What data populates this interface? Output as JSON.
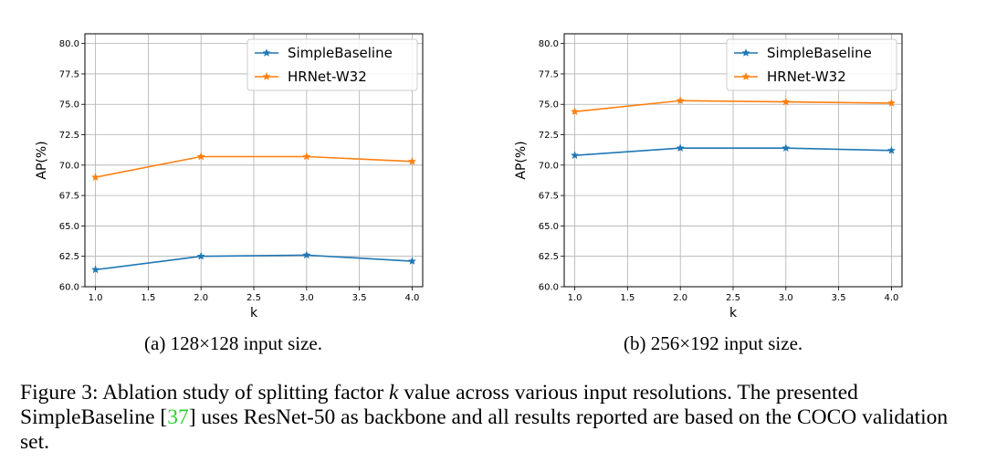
{
  "chart_data": [
    {
      "type": "line",
      "x": [
        1.0,
        2.0,
        3.0,
        4.0
      ],
      "xlim": [
        0.9,
        4.1
      ],
      "ylim": [
        60.0,
        80.8
      ],
      "xticks": [
        "1.0",
        "1.5",
        "2.0",
        "2.5",
        "3.0",
        "3.5",
        "4.0"
      ],
      "yticks": [
        "60.0",
        "62.5",
        "65.0",
        "67.5",
        "70.0",
        "72.5",
        "75.0",
        "77.5",
        "80.0"
      ],
      "xlabel": "k",
      "ylabel": "AP(%)",
      "grid": true,
      "legend_position": "top-right",
      "series": [
        {
          "name": "SimpleBaseline",
          "values": [
            61.4,
            62.5,
            62.6,
            62.1
          ],
          "color": "#1f77b4"
        },
        {
          "name": "HRNet-W32",
          "values": [
            69.0,
            70.7,
            70.7,
            70.3
          ],
          "color": "#ff7f0e"
        }
      ],
      "subcaption": {
        "label": "(a)",
        "text": "128×128 input size."
      }
    },
    {
      "type": "line",
      "x": [
        1.0,
        2.0,
        3.0,
        4.0
      ],
      "xlim": [
        0.9,
        4.1
      ],
      "ylim": [
        60.0,
        80.8
      ],
      "xticks": [
        "1.0",
        "1.5",
        "2.0",
        "2.5",
        "3.0",
        "3.5",
        "4.0"
      ],
      "yticks": [
        "60.0",
        "62.5",
        "65.0",
        "67.5",
        "70.0",
        "72.5",
        "75.0",
        "77.5",
        "80.0"
      ],
      "xlabel": "k",
      "ylabel": "AP(%)",
      "grid": true,
      "legend_position": "top-right",
      "series": [
        {
          "name": "SimpleBaseline",
          "values": [
            70.8,
            71.4,
            71.4,
            71.2
          ],
          "color": "#1f77b4"
        },
        {
          "name": "HRNet-W32",
          "values": [
            74.4,
            75.3,
            75.2,
            75.1
          ],
          "color": "#ff7f0e"
        }
      ],
      "subcaption": {
        "label": "(b)",
        "text": "256×192 input size."
      }
    }
  ],
  "caption": {
    "prefix": "Figure 3: Ablation study of splitting factor ",
    "variable": "k",
    "middle": " value across various input resolutions. The presented SimpleBaseline [",
    "citation": "37",
    "suffix": "] uses ResNet-50 as backbone and all results reported are based on the COCO validation set."
  }
}
